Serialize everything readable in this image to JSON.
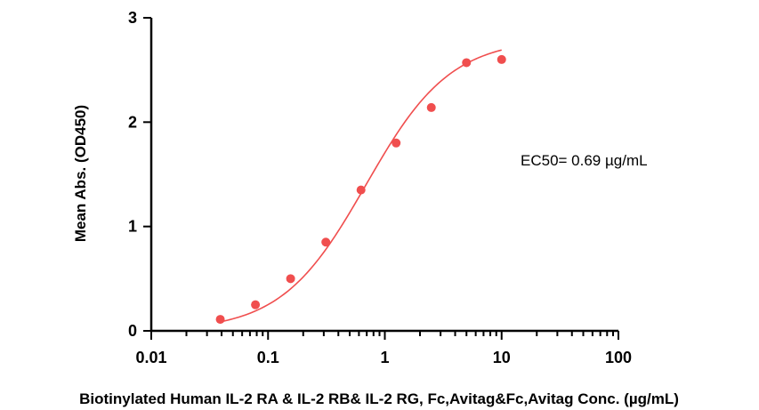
{
  "chart_data": {
    "type": "scatter",
    "xlabel": "Biotinylated Human IL-2 RA & IL-2 RB& IL-2 RG, Fc,Avitag&Fc,Avitag Conc. (µg/mL)",
    "ylabel": "Mean Abs. (OD450)",
    "x_scale": "log",
    "xlim": [
      0.01,
      100
    ],
    "ylim": [
      0,
      3
    ],
    "x_ticks": [
      0.01,
      0.1,
      1,
      10,
      100
    ],
    "x_tick_labels": [
      "0.01",
      "0.1",
      "1",
      "10",
      "100"
    ],
    "y_ticks": [
      0,
      1,
      2,
      3
    ],
    "y_tick_labels": [
      "0",
      "1",
      "2",
      "3"
    ],
    "grid": false,
    "annotation": "EC50= 0.69 µg/mL",
    "color": "#f04e4e",
    "series": [
      {
        "x": [
          0.039,
          0.078,
          0.156,
          0.3125,
          0.625,
          1.25,
          2.5,
          5,
          10
        ],
        "y": [
          0.11,
          0.25,
          0.5,
          0.85,
          1.35,
          1.8,
          2.14,
          2.57,
          2.6
        ],
        "fit": {
          "model": "4PL",
          "bottom": 0,
          "top": 2.8,
          "ec50": 0.69,
          "hill": 1.2
        }
      }
    ]
  }
}
